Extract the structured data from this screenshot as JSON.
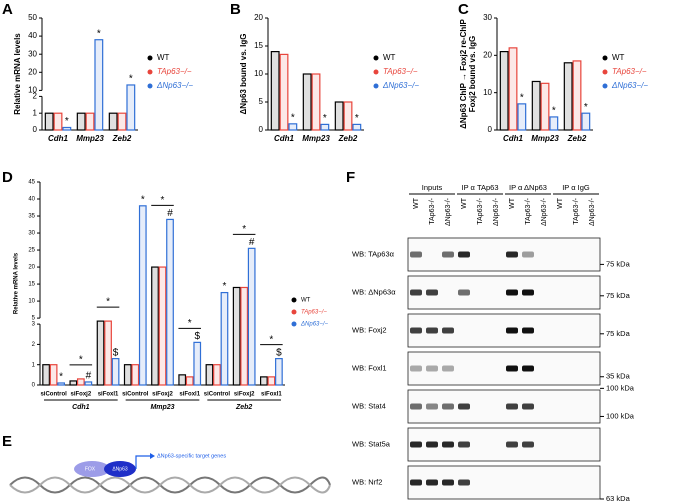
{
  "panel_labels": [
    "A",
    "B",
    "C",
    "D",
    "E",
    "F"
  ],
  "chart_data": [
    {
      "type": "bar",
      "ylabel": [
        "Relative mRNA levels"
      ],
      "categories": [
        "Cdh1",
        "Mmp23",
        "Zeb2"
      ],
      "series": [
        {
          "name": "WT",
          "color": "#000000",
          "values": [
            1,
            1,
            1
          ]
        },
        {
          "name": "TAp63−/−",
          "color": "#e8453c",
          "values": [
            1,
            1,
            1
          ]
        },
        {
          "name": "ΔNp63−/−",
          "color": "#2f6fd6",
          "values": [
            0.15,
            38,
            13
          ],
          "marks": [
            "*",
            "*",
            "*"
          ]
        }
      ],
      "ylim": [
        0,
        50
      ],
      "axis_break": [
        2,
        10
      ],
      "yticks": [
        0,
        1,
        2,
        10,
        20,
        30,
        40,
        50
      ]
    },
    {
      "type": "bar",
      "ylabel": [
        "ΔNp63 bound vs. IgG"
      ],
      "categories": [
        "Cdh1",
        "Mmp23",
        "Zeb2"
      ],
      "series": [
        {
          "name": "WT",
          "color": "#000000",
          "values": [
            14,
            10,
            5
          ]
        },
        {
          "name": "TAp63−/−",
          "color": "#e8453c",
          "values": [
            13.5,
            10,
            5
          ]
        },
        {
          "name": "ΔNp63−/−",
          "color": "#2f6fd6",
          "values": [
            1.1,
            1,
            1
          ],
          "marks": [
            "*",
            "*",
            "*"
          ]
        }
      ],
      "ylim": [
        0,
        20
      ],
      "yticks": [
        0,
        5,
        10,
        15,
        20
      ]
    },
    {
      "type": "bar",
      "ylabel": [
        "ΔNp63 ChIP → Foxj2 re-ChIP",
        "Foxj2 bound vs. IgG"
      ],
      "categories": [
        "Cdh1",
        "Mmp23",
        "Zeb2"
      ],
      "series": [
        {
          "name": "WT",
          "color": "#000000",
          "values": [
            21,
            13,
            18
          ]
        },
        {
          "name": "TAp63−/−",
          "color": "#e8453c",
          "values": [
            22,
            12.5,
            18.5
          ]
        },
        {
          "name": "ΔNp63−/−",
          "color": "#2f6fd6",
          "values": [
            7,
            3.5,
            4.5
          ],
          "marks": [
            "*",
            "*",
            "*"
          ]
        }
      ],
      "ylim": [
        0,
        30
      ],
      "yticks": [
        0,
        10,
        20,
        30
      ]
    },
    {
      "type": "bar",
      "ylabel": [
        "Relative mRNA levels"
      ],
      "categories": [
        "siControl",
        "siFoxj2",
        "siFoxl1",
        "siControl",
        "siFoxj2",
        "siFoxl1",
        "siControl",
        "siFoxj2",
        "siFoxl1"
      ],
      "groups": [
        "Cdh1",
        "Mmp23",
        "Zeb2"
      ],
      "series": [
        {
          "name": "WT",
          "color": "#000000",
          "values": [
            1,
            0.2,
            4.8,
            1,
            20,
            0.5,
            1,
            14,
            0.4
          ]
        },
        {
          "name": "TAp63−/−",
          "color": "#e8453c",
          "values": [
            1,
            0.3,
            4.8,
            1,
            20,
            0.4,
            1,
            14,
            0.4
          ]
        },
        {
          "name": "ΔNp63−/−",
          "color": "#2f6fd6",
          "values": [
            0.1,
            0.15,
            1.3,
            38,
            34,
            2.1,
            12.5,
            25.5,
            1.3
          ],
          "marks": [
            "*",
            "#",
            "$",
            "*",
            "#",
            "$",
            "*",
            "#",
            "$"
          ]
        }
      ],
      "bracket_labels": [
        null,
        "*",
        "*",
        null,
        "*",
        "*",
        null,
        "*",
        "*"
      ],
      "ylim": [
        0,
        45
      ],
      "axis_break": [
        3,
        5
      ],
      "yticks": [
        0,
        1,
        2,
        3,
        5,
        10,
        15,
        20,
        25,
        30,
        35,
        40,
        45
      ]
    }
  ],
  "diagram": {
    "fox": "FOX",
    "dnp63": "ΔNp63",
    "target": "ΔNp63-specific target genes"
  },
  "blot": {
    "groups": [
      "Inputs",
      "IP α TAp63",
      "IP α ΔNp63",
      "IP α IgG"
    ],
    "lanes": [
      "WT",
      "TAp63-/-",
      "ΔNp63-/-",
      "WT",
      "TAp63-/-",
      "ΔNp63-/-",
      "WT",
      "TAp63-/-",
      "ΔNp63-/-",
      "WT",
      "TAp63-/-",
      "ΔNp63-/-"
    ],
    "rows": [
      {
        "label": "WB: TAp63α",
        "marker": "75 kDa",
        "bands": [
          0.6,
          0,
          0.6,
          0.9,
          0,
          0,
          0.9,
          0.4,
          0,
          0,
          0,
          0
        ]
      },
      {
        "label": "WB: ΔNp63α",
        "marker": "75 kDa",
        "bands": [
          0.8,
          0.8,
          0,
          0.6,
          0,
          0,
          1,
          1,
          0,
          0,
          0,
          0
        ]
      },
      {
        "label": "WB: Foxj2",
        "marker": "75 kDa",
        "bands": [
          0.8,
          0.8,
          0.8,
          0,
          0,
          0,
          1,
          1,
          0,
          0,
          0,
          0
        ]
      },
      {
        "label": "WB: Foxl1",
        "marker": "35 kDa",
        "bands": [
          0.35,
          0.35,
          0.35,
          0,
          0,
          0,
          1,
          1,
          0,
          0,
          0,
          0
        ]
      },
      {
        "label": "WB: Stat4",
        "marker": "100 kDa",
        "bands": [
          0.6,
          0.5,
          0.6,
          0.8,
          0,
          0,
          0.8,
          0.8,
          0,
          0,
          0,
          0
        ]
      },
      {
        "label": "WB: Stat5a",
        "marker": "100 kDa",
        "bands": [
          0.9,
          0.9,
          0.9,
          0.8,
          0,
          0,
          0.8,
          0.8,
          0,
          0,
          0,
          0
        ]
      },
      {
        "label": "WB: Nrf2",
        "marker": "63 kDa",
        "bands": [
          0.9,
          0.9,
          0.9,
          0.8,
          0,
          0,
          0,
          0,
          0,
          0,
          0,
          0
        ]
      }
    ]
  }
}
